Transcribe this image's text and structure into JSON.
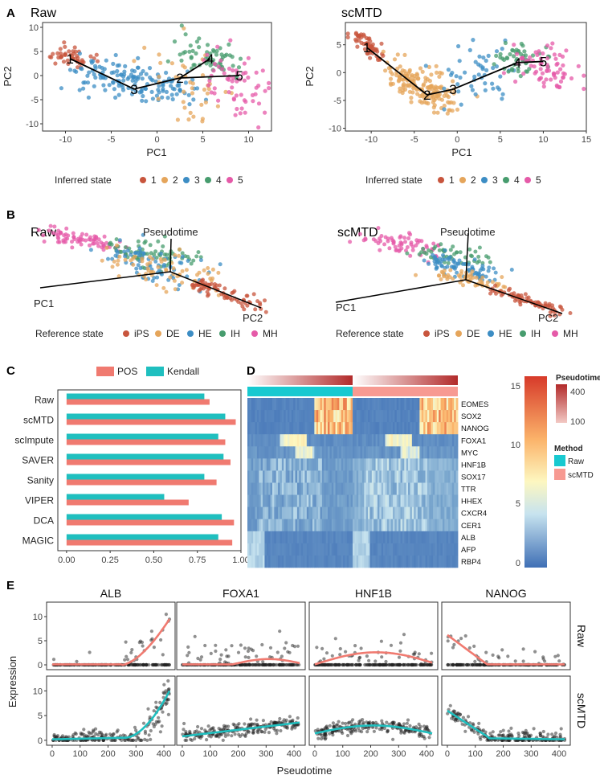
{
  "panels": {
    "A": "A",
    "B": "B",
    "C": "C",
    "D": "D",
    "E": "E"
  },
  "colors": {
    "s1": "#c8553d",
    "s2": "#e5a55b",
    "s3": "#3c8dc4",
    "s4": "#479c6e",
    "s5": "#e55aa8",
    "ips": "#c8553d",
    "de": "#e5a55b",
    "he": "#3c8dc4",
    "ih": "#479c6e",
    "mh": "#e55aa8",
    "pos": "#f07a70",
    "kendall": "#1fbfbf",
    "raw": "#18c9d0",
    "scmtd": "#f79a92"
  },
  "panelA": {
    "raw": {
      "title": "Raw",
      "xlabel": "PC1",
      "ylabel": "PC2",
      "xlim": [
        -12.5,
        12.5
      ],
      "ylim": [
        -11.5,
        11
      ],
      "xticks": [
        -10,
        -5,
        0,
        5,
        10
      ],
      "yticks": [
        10,
        5,
        0,
        -5,
        -10
      ],
      "nodes": [
        {
          "label": "1",
          "x": -9.5,
          "y": 3.5
        },
        {
          "label": "3",
          "x": -2.5,
          "y": -2.8
        },
        {
          "label": "2",
          "x": 2.5,
          "y": -0.5
        },
        {
          "label": "4",
          "x": 5.8,
          "y": 3.5
        },
        {
          "label": "5",
          "x": 9.0,
          "y": 0.0
        }
      ],
      "edges": [
        [
          0,
          1
        ],
        [
          1,
          2
        ],
        [
          2,
          4
        ],
        [
          2,
          3
        ]
      ]
    },
    "scmtd": {
      "title": "scMTD",
      "xlabel": "PC1",
      "ylabel": "PC2",
      "xlim": [
        -13,
        15
      ],
      "ylim": [
        -10.5,
        9
      ],
      "xticks": [
        -10,
        -5,
        0,
        5,
        10,
        15
      ],
      "yticks": [
        5,
        0,
        -5,
        -10
      ],
      "nodes": [
        {
          "label": "1",
          "x": -10.5,
          "y": 4.5
        },
        {
          "label": "2",
          "x": -3.5,
          "y": -4.0
        },
        {
          "label": "3",
          "x": -0.5,
          "y": -3.0
        },
        {
          "label": "4",
          "x": 7.0,
          "y": 1.8
        },
        {
          "label": "5",
          "x": 10.0,
          "y": 2.0
        }
      ],
      "edges": [
        [
          0,
          1
        ],
        [
          1,
          2
        ],
        [
          2,
          3
        ],
        [
          3,
          4
        ]
      ]
    },
    "legend": {
      "title": "Inferred state",
      "items": [
        "1",
        "2",
        "3",
        "4",
        "5"
      ]
    }
  },
  "panelB": {
    "raw": {
      "title": "Raw",
      "pseudotime": "Pseudotime",
      "pc1": "PC1",
      "pc2": "PC2"
    },
    "scmtd": {
      "title": "scMTD",
      "pseudotime": "Pseudotime",
      "pc1": "PC1",
      "pc2": "PC2"
    },
    "legend": {
      "title": "Reference state",
      "items": [
        "iPS",
        "DE",
        "HE",
        "IH",
        "MH"
      ]
    }
  },
  "chart_data": [
    {
      "type": "bar",
      "orientation": "horizontal",
      "panel": "C",
      "categories": [
        "Raw",
        "scMTD",
        "scImpute",
        "SAVER",
        "Sanity",
        "VIPER",
        "DCA",
        "MAGIC"
      ],
      "series": [
        {
          "name": "POS",
          "values": [
            0.82,
            0.97,
            0.91,
            0.94,
            0.86,
            0.7,
            0.96,
            0.95
          ]
        },
        {
          "name": "Kendall",
          "values": [
            0.79,
            0.91,
            0.87,
            0.9,
            0.79,
            0.56,
            0.89,
            0.87
          ]
        }
      ],
      "xlim": [
        -0.05,
        1.0
      ],
      "xticks": [
        "0.00",
        "0.25",
        "0.50",
        "0.75",
        "1.00"
      ],
      "legend": [
        "POS",
        "Kendall"
      ]
    },
    {
      "type": "heatmap",
      "panel": "D",
      "genes": [
        "EOMES",
        "SOX2",
        "NANOG",
        "FOXA1",
        "MYC",
        "HNF1B",
        "SOX17",
        "TTR",
        "HHEX",
        "CXCR4",
        "CER1",
        "ALB",
        "AFP",
        "RBP4"
      ],
      "colorbar_ticks": [
        "15",
        "10",
        "5",
        "0"
      ],
      "pseudotime_legend": {
        "title": "Pseudotime",
        "ticks": [
          "400",
          "100"
        ]
      },
      "method_legend": {
        "title": "Method",
        "items": [
          "Raw",
          "scMTD"
        ]
      }
    },
    {
      "type": "scatter",
      "panel": "E",
      "genes": [
        "ALB",
        "FOXA1",
        "HNF1B",
        "NANOG"
      ],
      "rows": [
        "Raw",
        "scMTD"
      ],
      "xlabel": "Pseudotime",
      "ylabel": "Expression",
      "xticks": [
        "0",
        "100",
        "200",
        "300",
        "400"
      ],
      "yticks": [
        "10",
        "5",
        "0"
      ],
      "xlim": [
        -20,
        440
      ],
      "ylim": [
        -1,
        13
      ]
    }
  ]
}
